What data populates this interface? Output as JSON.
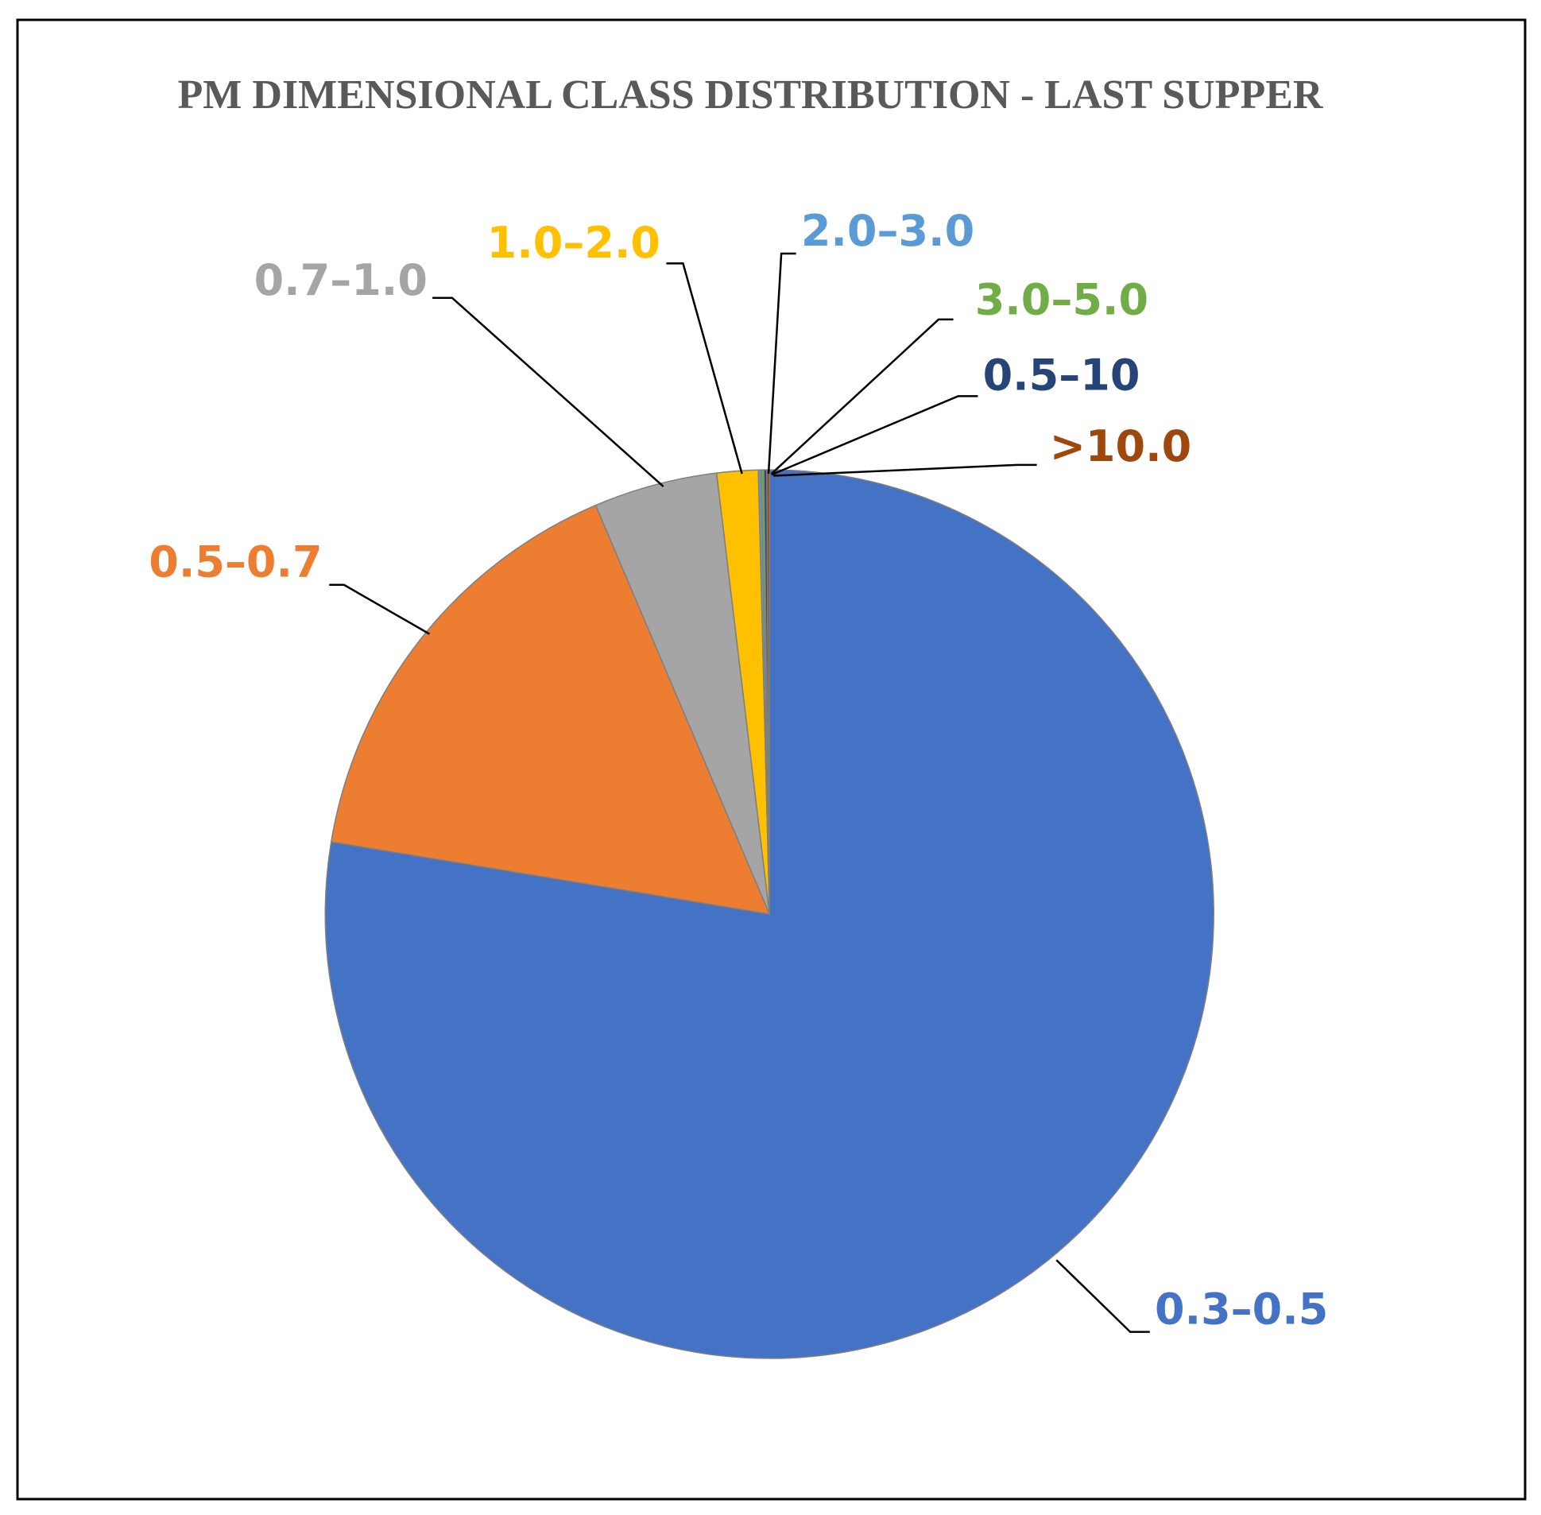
{
  "chart_data": {
    "type": "pie",
    "title": "PM DIMENSIONAL CLASS DISTRIBUTION - LAST SUPPER",
    "categories": [
      "0.3–0.5",
      "0.5–0.7",
      "0.7–1.0",
      "1.0–2.0",
      "2.0–3.0",
      "3.0–5.0",
      "0.5–10",
      ">10.0"
    ],
    "values": [
      77.6,
      16,
      4.5,
      1.5,
      0.1,
      0.1,
      0.1,
      0.1
    ],
    "colors": [
      "#4472c4",
      "#ed7d31",
      "#a5a5a5",
      "#ffc000",
      "#5b9bd5",
      "#70ad47",
      "#264478",
      "#9e480e"
    ]
  }
}
